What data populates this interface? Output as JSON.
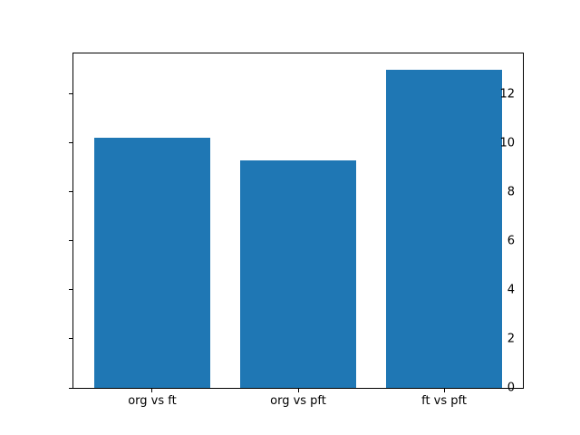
{
  "figure": {
    "background_color": "#ffffff",
    "title": ""
  },
  "chart_data": {
    "type": "bar",
    "categories": [
      "org vs ft",
      "org vs pft",
      "ft vs pft"
    ],
    "values": [
      10.2,
      9.3,
      13.0
    ],
    "title": "",
    "xlabel": "",
    "ylabel": "",
    "yticks": [
      0,
      2,
      4,
      6,
      8,
      10,
      12
    ],
    "ylim": [
      0,
      13.65
    ],
    "xlim": [
      -0.54,
      2.54
    ],
    "bar_width": 0.8,
    "bar_color": "#1f77b4",
    "spine_color": "#000000",
    "grid": false,
    "legend_position": "none"
  }
}
